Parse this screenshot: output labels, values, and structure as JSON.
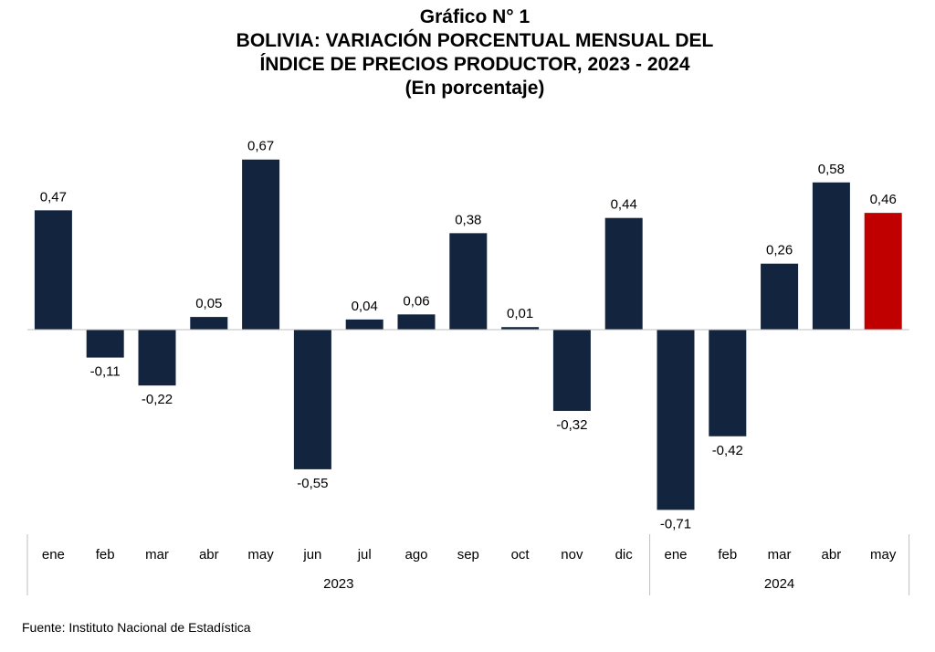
{
  "header": {
    "chart_number": "Gráfico N° 1",
    "title_line1": "BOLIVIA: VARIACIÓN PORCENTUAL MENSUAL DEL",
    "title_line2": "ÍNDICE DE PRECIOS PRODUCTOR, 2023 - 2024",
    "subtitle": "(En porcentaje)"
  },
  "source": "Fuente: Instituto Nacional de Estadística",
  "colors": {
    "bar": "#13243f",
    "highlight": "#c00000",
    "axis": "#bfbfbf"
  },
  "chart_data": {
    "type": "bar",
    "title": "BOLIVIA: VARIACIÓN PORCENTUAL MENSUAL DEL ÍNDICE DE PRECIOS PRODUCTOR, 2023 - 2024",
    "subtitle": "(En porcentaje)",
    "categories": [
      "ene",
      "feb",
      "mar",
      "abr",
      "may",
      "jun",
      "jul",
      "ago",
      "sep",
      "oct",
      "nov",
      "dic",
      "ene",
      "feb",
      "mar",
      "abr",
      "may"
    ],
    "values": [
      0.47,
      -0.11,
      -0.22,
      0.05,
      0.67,
      -0.55,
      0.04,
      0.06,
      0.38,
      0.01,
      -0.32,
      0.44,
      -0.71,
      -0.42,
      0.26,
      0.58,
      0.46
    ],
    "labels": [
      "0,47",
      "-0,11",
      "-0,22",
      "0,05",
      "0,67",
      "-0,55",
      "0,04",
      "0,06",
      "0,38",
      "0,01",
      "-0,32",
      "0,44",
      "-0,71",
      "-0,42",
      "0,26",
      "0,58",
      "0,46"
    ],
    "groups": [
      {
        "label": "2023",
        "start": 0,
        "end": 11
      },
      {
        "label": "2024",
        "start": 12,
        "end": 16
      }
    ],
    "highlight_index": 16,
    "xlabel": "",
    "ylabel": "",
    "grid": false,
    "legend": "none"
  }
}
